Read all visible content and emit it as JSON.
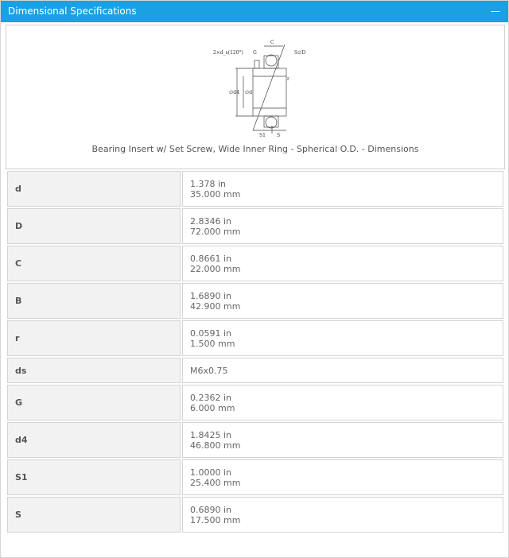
{
  "header": {
    "title": "Dimensional Specifications",
    "collapse_icon": "minus-icon"
  },
  "figure": {
    "caption": "Bearing Insert w/ Set Screw, Wide Inner Ring - Spherical O.D. - Dimensions",
    "labels": {
      "screws": "2×d_s(120°)",
      "G": "G",
      "C": "C",
      "r": "r",
      "SD": "S∅D",
      "d4": "∅d4",
      "d": "∅d",
      "S1": "S1",
      "S": "S"
    }
  },
  "specs": [
    {
      "name": "d",
      "in": "1.378 in",
      "mm": "35.000 mm"
    },
    {
      "name": "D",
      "in": "2.8346 in",
      "mm": "72.000 mm"
    },
    {
      "name": "C",
      "in": "0.8661 in",
      "mm": "22.000 mm"
    },
    {
      "name": "B",
      "in": "1.6890 in",
      "mm": "42.900 mm"
    },
    {
      "name": "r",
      "in": "0.0591 in",
      "mm": "1.500 mm"
    },
    {
      "name": "ds",
      "value": "M6x0.75"
    },
    {
      "name": "G",
      "in": "0.2362 in",
      "mm": "6.000 mm"
    },
    {
      "name": "d4",
      "in": "1.8425 in",
      "mm": "46.800 mm"
    },
    {
      "name": "S1",
      "in": "1.0000 in",
      "mm": "25.400 mm"
    },
    {
      "name": "S",
      "in": "0.6890 in",
      "mm": "17.500 mm"
    }
  ]
}
